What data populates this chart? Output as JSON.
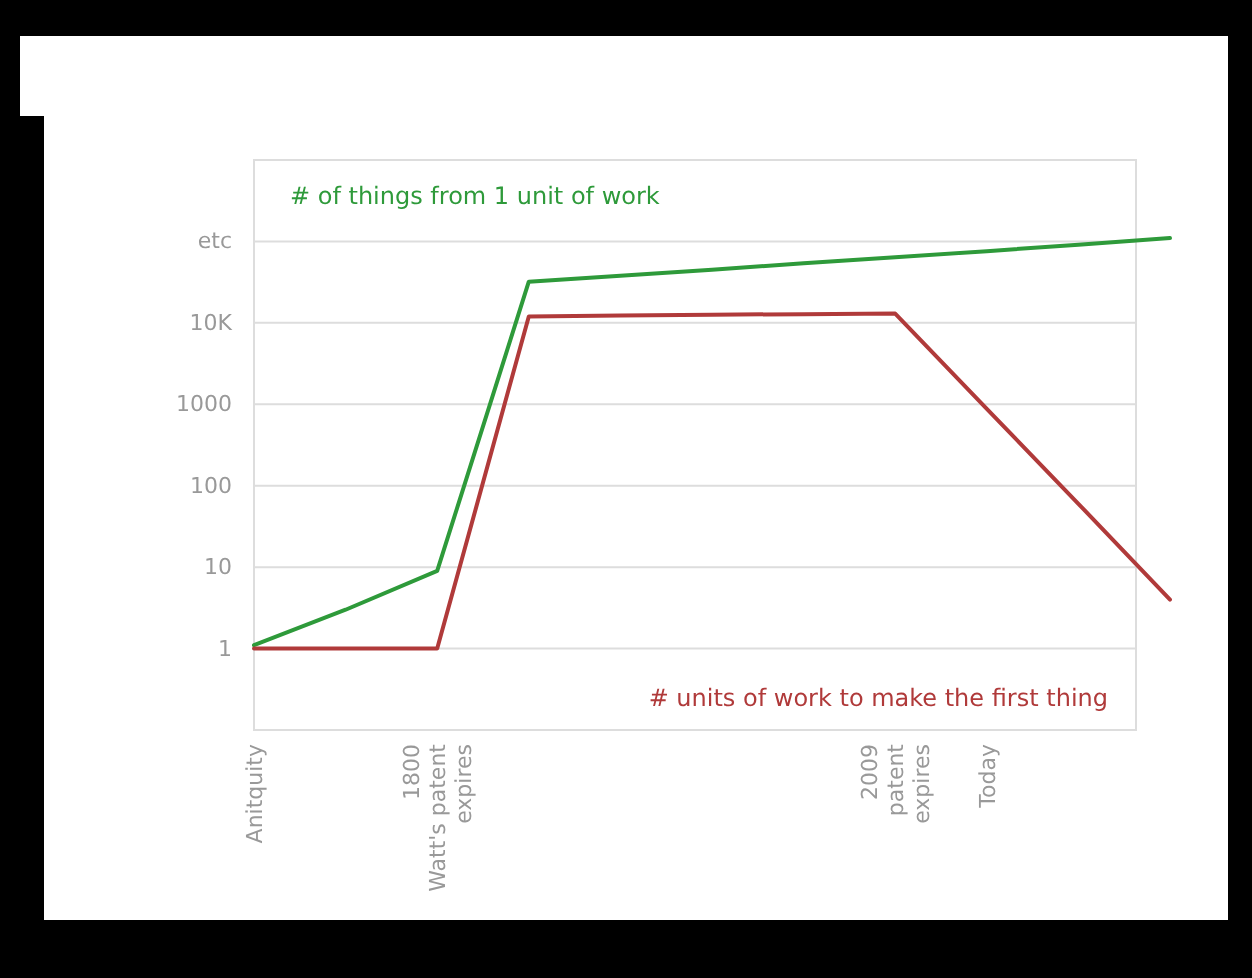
{
  "chart_data": {
    "type": "line",
    "categories": [
      "Anitquity",
      null,
      "1800\nWatt's patent\nexpires",
      null,
      null,
      null,
      null,
      "2009\npatent\nexpires",
      "Today",
      null,
      null
    ],
    "series": [
      {
        "name": "# of things from 1 unit of work",
        "color": "#2e9a3a",
        "values": [
          1.1,
          3,
          9,
          32000,
          38000,
          45000,
          54000,
          64000,
          76000,
          91000,
          110000
        ]
      },
      {
        "name": "# units of work to make the first thing",
        "color": "#b03a3a",
        "values": [
          1,
          1,
          1,
          12000,
          12300,
          12600,
          12800,
          13000,
          880,
          60,
          4
        ]
      }
    ],
    "log": true,
    "ylim": [
      0.1,
      1000000
    ],
    "yticks": [
      1,
      10,
      100,
      1000,
      {
        "value": 10000,
        "label": "10K"
      },
      {
        "value": 100000,
        "label": "etc"
      }
    ],
    "grid": "y",
    "tick_labels": true
  }
}
